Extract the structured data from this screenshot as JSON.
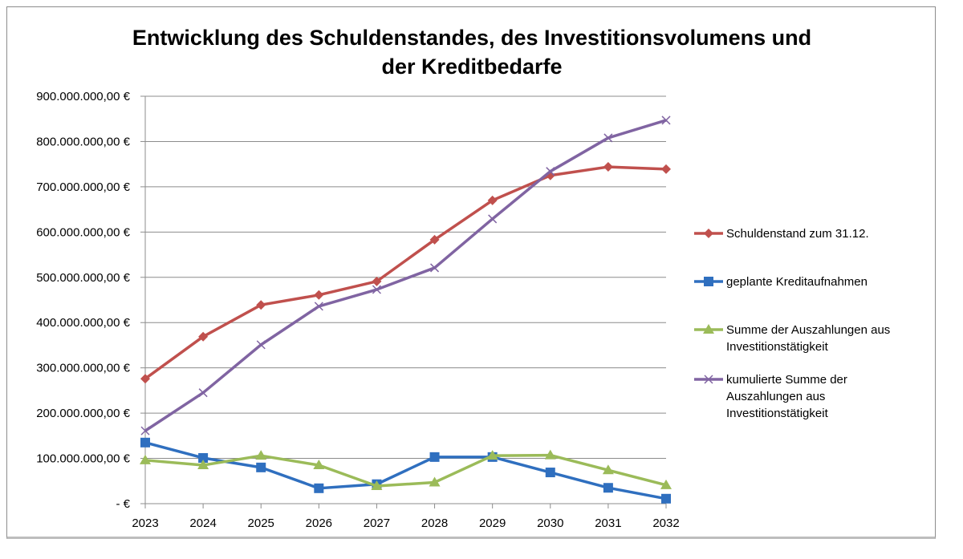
{
  "chart_data": {
    "type": "line",
    "title": [
      "Entwicklung des Schuldenstandes, des Investitionsvolumens und",
      "der Kreditbedarfe"
    ],
    "xlabel": "",
    "ylabel": "",
    "categories": [
      "2023",
      "2024",
      "2025",
      "2026",
      "2027",
      "2028",
      "2029",
      "2030",
      "2031",
      "2032"
    ],
    "ylim": [
      0,
      900000000
    ],
    "y_ticks": [
      0,
      100000000,
      200000000,
      300000000,
      400000000,
      500000000,
      600000000,
      700000000,
      800000000,
      900000000
    ],
    "y_tick_labels": [
      "-   €",
      "100.000.000,00 €",
      "200.000.000,00 €",
      "300.000.000,00 €",
      "400.000.000,00 €",
      "500.000.000,00 €",
      "600.000.000,00 €",
      "700.000.000,00 €",
      "800.000.000,00 €",
      "900.000.000,00 €"
    ],
    "grid": "horizontal",
    "legend_position": "right",
    "series": [
      {
        "name": [
          "Schuldenstand zum 31.12."
        ],
        "color": "#c0504d",
        "marker": "diamond",
        "values": [
          276000000,
          369000000,
          439000000,
          461000000,
          491000000,
          583000000,
          670000000,
          725000000,
          744000000,
          739000000
        ]
      },
      {
        "name": [
          "geplante Kreditaufnahmen"
        ],
        "color": "#2f6fbf",
        "marker": "square",
        "values": [
          135000000,
          101000000,
          80000000,
          34000000,
          43000000,
          103000000,
          103000000,
          69000000,
          35000000,
          11000000
        ]
      },
      {
        "name": [
          "Summe der Auszahlungen aus",
          "Investitionstätigkeit"
        ],
        "color": "#9bbb59",
        "marker": "triangle",
        "values": [
          96000000,
          85000000,
          106000000,
          85000000,
          39000000,
          47000000,
          106000000,
          107000000,
          74000000,
          41000000
        ]
      },
      {
        "name": [
          "kumulierte Summe der",
          "Auszahlungen aus",
          "Investitionstätigkeit"
        ],
        "color": "#8064a2",
        "marker": "x",
        "values": [
          161000000,
          245000000,
          351000000,
          436000000,
          473000000,
          521000000,
          629000000,
          734000000,
          808000000,
          847000000
        ]
      }
    ]
  }
}
